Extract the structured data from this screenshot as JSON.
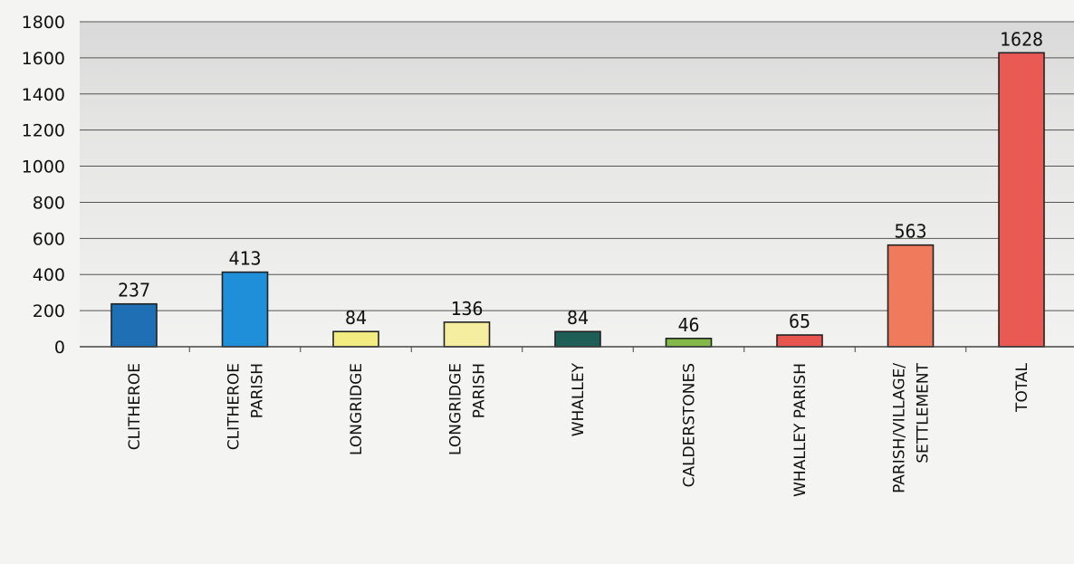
{
  "chart_data": {
    "type": "bar",
    "categories": [
      [
        "CLITHEROE"
      ],
      [
        "CLITHEROE",
        "PARISH"
      ],
      [
        "LONGRIDGE"
      ],
      [
        "LONGRIDGE",
        "PARISH"
      ],
      [
        "WHALLEY"
      ],
      [
        "CALDERSTONES"
      ],
      [
        "WHALLEY PARISH"
      ],
      [
        "PARISH/VILLAGE/",
        "SETTLEMENT"
      ],
      [
        "TOTAL"
      ]
    ],
    "values": [
      237,
      413,
      84,
      136,
      84,
      46,
      65,
      563,
      1628
    ],
    "data_labels": [
      "237",
      "413",
      "84",
      "136",
      "84",
      "46",
      "65",
      "563",
      "1628"
    ],
    "bar_colors": [
      "#1f6fb5",
      "#1e8fd8",
      "#f3ec80",
      "#f5eea0",
      "#1d5e57",
      "#84b94a",
      "#e8554e",
      "#f07a5c",
      "#ea5a55"
    ],
    "ylim": [
      0,
      1800
    ],
    "yticks": [
      0,
      200,
      400,
      600,
      800,
      1000,
      1200,
      1400,
      1600,
      1800
    ],
    "grid": true,
    "legend": "none",
    "title": "",
    "xlabel": "",
    "ylabel": ""
  }
}
